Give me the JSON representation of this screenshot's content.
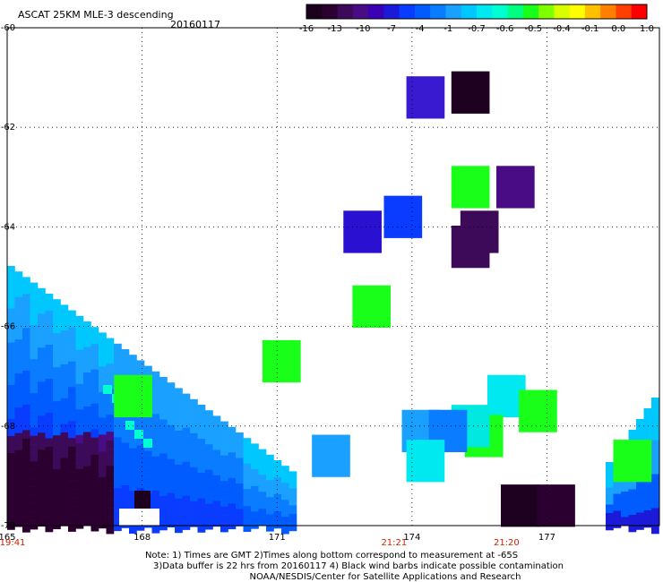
{
  "header": {
    "title": "ASCAT 25KM MLE-3 descending",
    "date": "20160117"
  },
  "colorbar": {
    "colors": [
      "#1a001a",
      "#2b0030",
      "#3d0a5a",
      "#4a0c84",
      "#3a00b5",
      "#1a1ad8",
      "#0a3cff",
      "#005cff",
      "#0a7cff",
      "#1aa0ff",
      "#00c8ff",
      "#00e8f0",
      "#00ffd0",
      "#00ff80",
      "#1aff1a",
      "#80ff00",
      "#d8ff00",
      "#ffff00",
      "#ffc000",
      "#ff8000",
      "#ff4000",
      "#ff0000"
    ],
    "tick_labels": [
      "-16",
      "-13",
      "-10",
      "-7",
      "-4",
      "-1",
      "-0.7",
      "-0.6",
      "-0.5",
      "-0.4",
      "-0.1",
      "0.0",
      "1.0"
    ]
  },
  "footer": {
    "line1": "Note: 1) Times are GMT 2)Times along bottom correspond to measurement at -65S",
    "line2": "3)Data buffer is 22 hrs from 20160117 4) Black wind barbs indicate possible contamination",
    "line3": "NOAA/NESDIS/Center for Satellite Applications and Research"
  },
  "chart_data": {
    "type": "heatmap",
    "title": "ASCAT 25KM MLE-3 descending",
    "date": "20160117",
    "xlabel": "",
    "ylabel": "",
    "xlim": [
      165,
      179.5
    ],
    "ylim": [
      -70,
      -60
    ],
    "x_ticks": [
      165,
      168,
      171,
      174,
      177
    ],
    "x_tick_labels": [
      "165",
      "168",
      "171",
      "174",
      "177"
    ],
    "y_ticks": [
      -60,
      -62,
      -64,
      -66,
      -68,
      -70
    ],
    "y_tick_labels": [
      "-60",
      "-62",
      "-64",
      "-66",
      "-68",
      "-70"
    ],
    "time_labels": [
      {
        "x": 165,
        "label": "19:41"
      },
      {
        "x": 174,
        "label": "21:21"
      },
      {
        "x": 176.5,
        "label": "21:20"
      }
    ],
    "grid": true,
    "cells": [
      {
        "lon": 174.3,
        "lat": -61.4,
        "color": "#3a1ad0"
      },
      {
        "lon": 175.3,
        "lat": -61.3,
        "color": "#1e0020"
      },
      {
        "lon": 175.3,
        "lat": -63.2,
        "color": "#1aff1a"
      },
      {
        "lon": 176.3,
        "lat": -63.2,
        "color": "#4a0c84"
      },
      {
        "lon": 173.8,
        "lat": -63.8,
        "color": "#0a3cff"
      },
      {
        "lon": 172.9,
        "lat": -64.1,
        "color": "#2a10d0"
      },
      {
        "lon": 175.5,
        "lat": -64.1,
        "color": "#3d0a5a"
      },
      {
        "lon": 175.3,
        "lat": -64.4,
        "color": "#3d0a5a"
      },
      {
        "lon": 173.1,
        "lat": -65.6,
        "color": "#1aff1a"
      },
      {
        "lon": 171.1,
        "lat": -66.7,
        "color": "#1aff1a"
      },
      {
        "lon": 167.8,
        "lat": -67.4,
        "color": "#1aff1a"
      },
      {
        "lon": 172.2,
        "lat": -68.6,
        "color": "#1aa0ff"
      },
      {
        "lon": 174.2,
        "lat": -68.1,
        "color": "#1aa0ff"
      },
      {
        "lon": 176.1,
        "lat": -67.4,
        "color": "#00e8f0"
      },
      {
        "lon": 176.8,
        "lat": -67.7,
        "color": "#1aff1a"
      },
      {
        "lon": 175.6,
        "lat": -68.2,
        "color": "#1aff1a"
      },
      {
        "lon": 175.3,
        "lat": -68.0,
        "color": "#00e8e0"
      },
      {
        "lon": 174.8,
        "lat": -68.1,
        "color": "#0a7cff"
      },
      {
        "lon": 174.3,
        "lat": -68.7,
        "color": "#00e8f0"
      },
      {
        "lon": 176.4,
        "lat": -69.6,
        "color": "#1e0020"
      },
      {
        "lon": 177.2,
        "lat": -69.6,
        "color": "#2b0030"
      },
      {
        "lon": 178.9,
        "lat": -68.7,
        "color": "#1aff1a"
      }
    ]
  }
}
